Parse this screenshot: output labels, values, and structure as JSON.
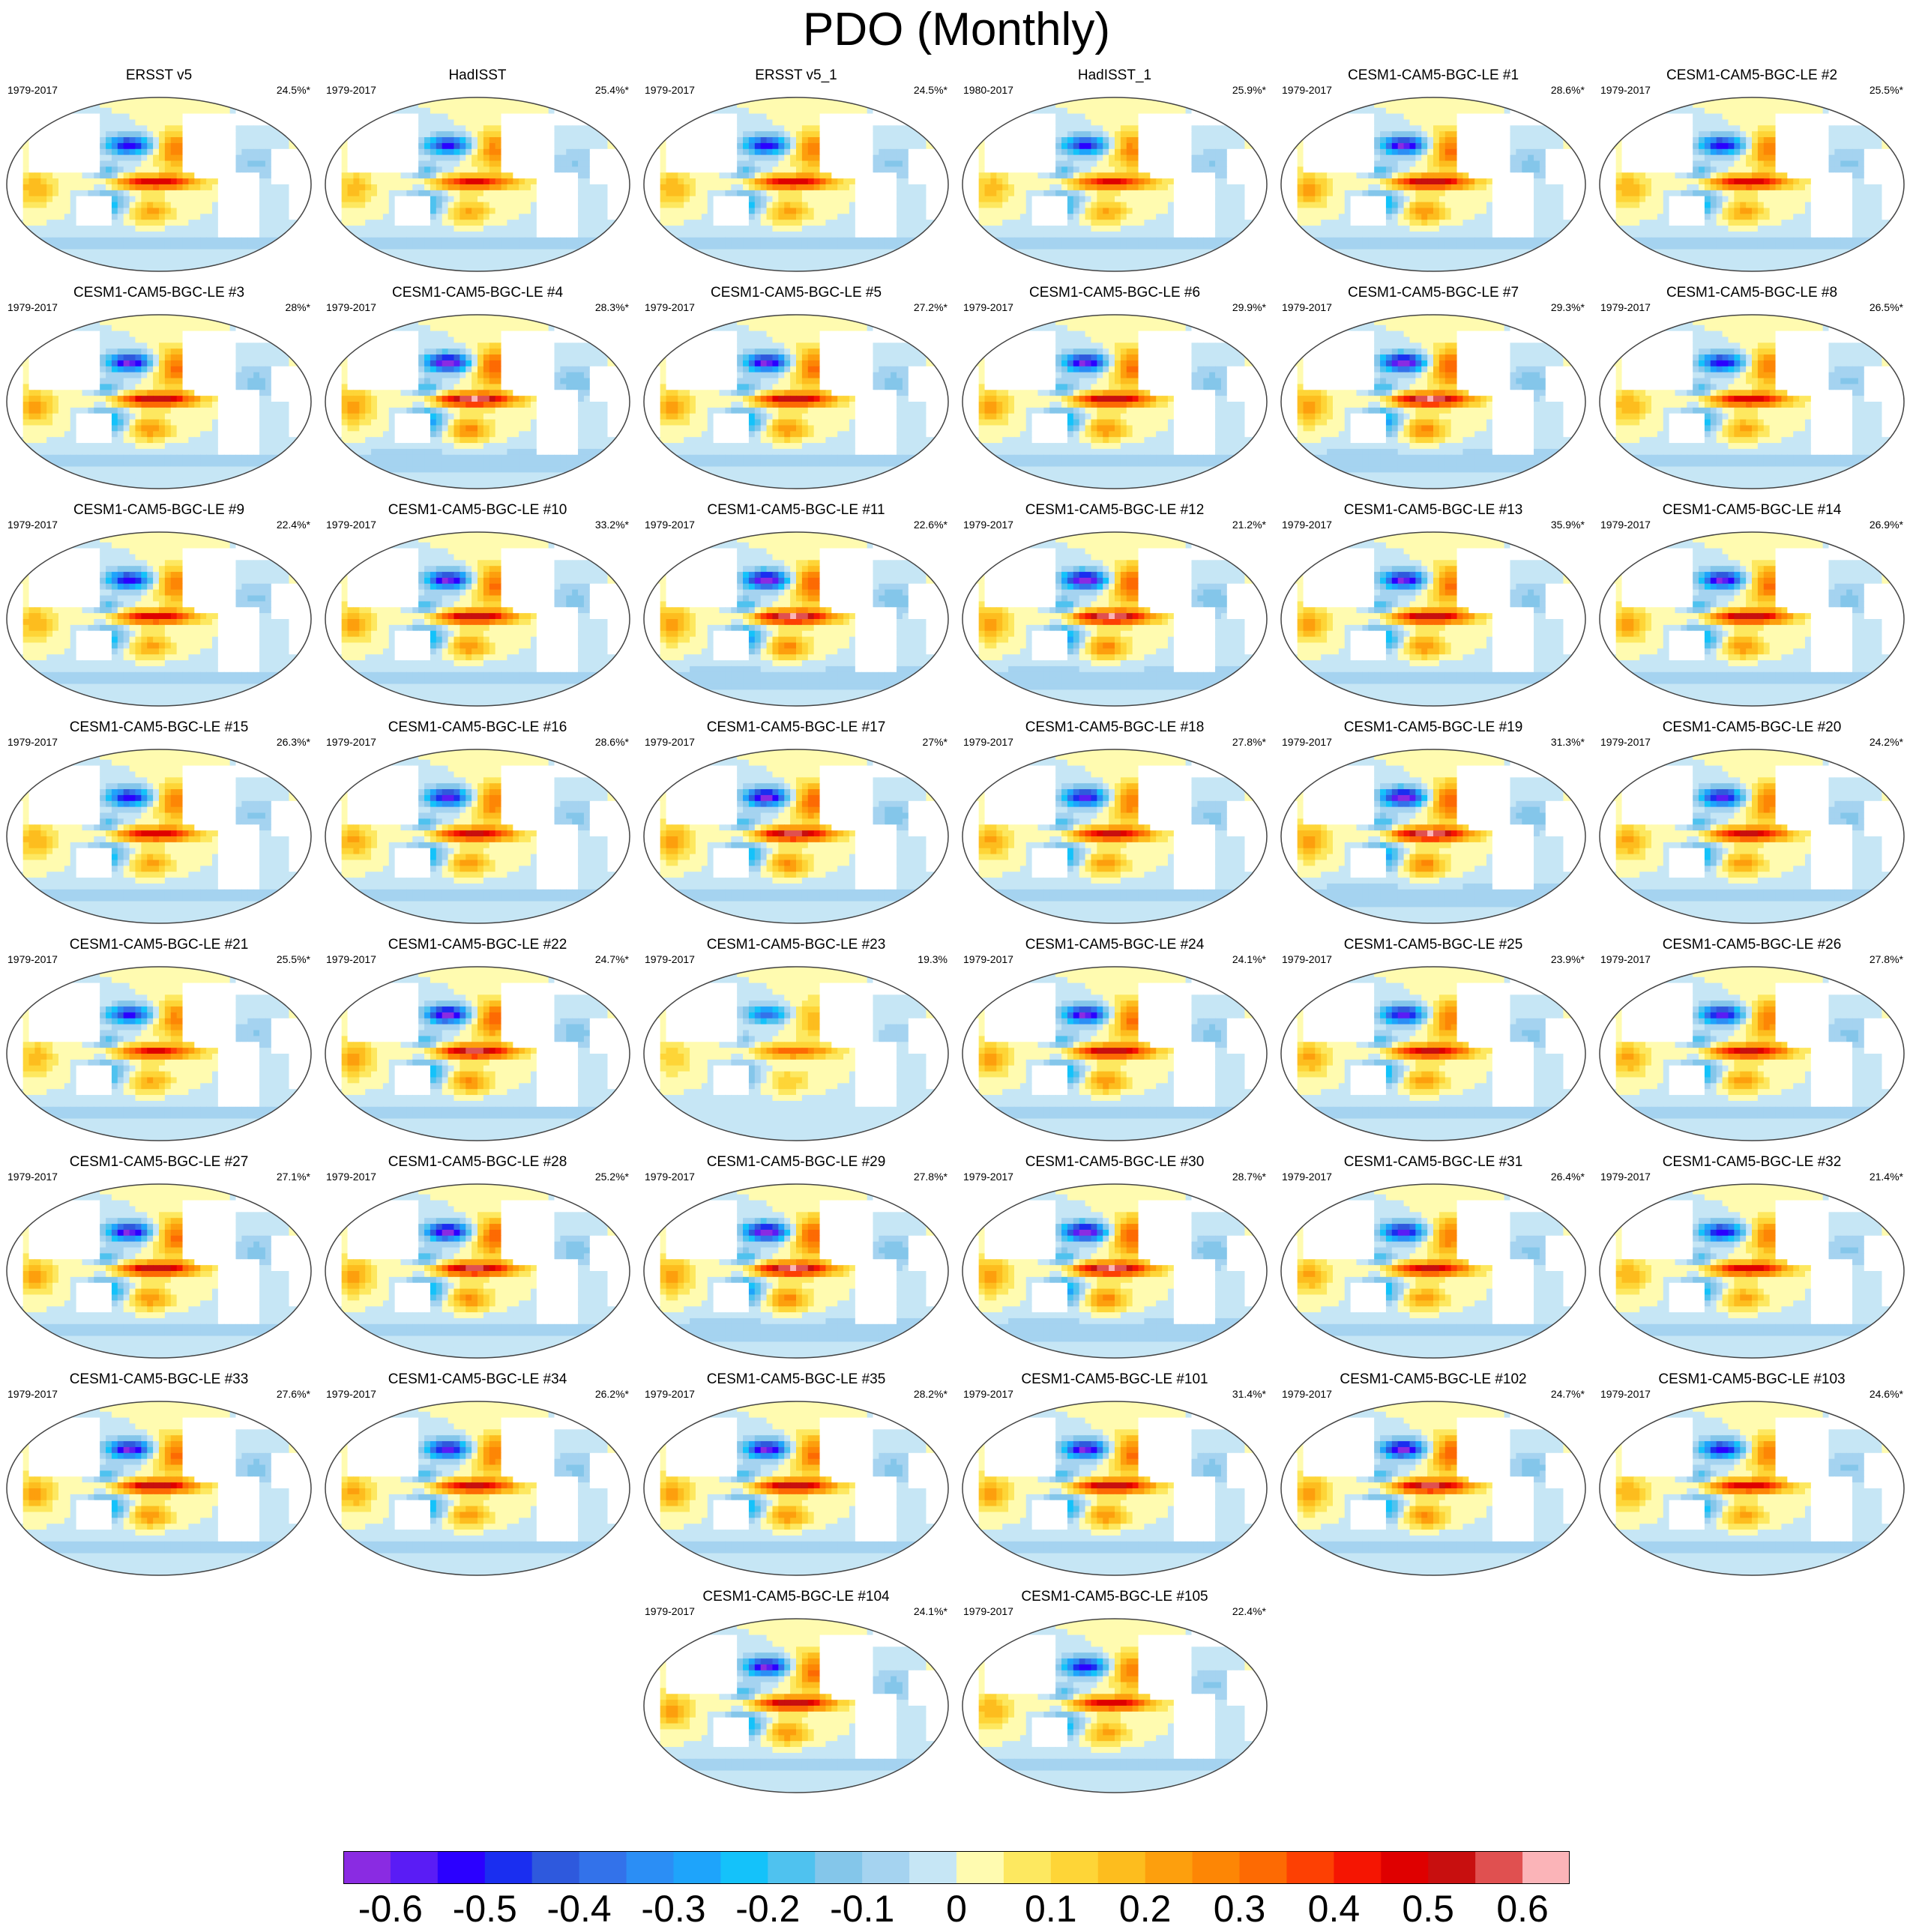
{
  "title": "PDO (Monthly)",
  "chart_data": {
    "type": "map-panels",
    "projection": "Robinson-like global, Pacific-centered",
    "variable": "PDO regression pattern (SST)",
    "panels": [
      {
        "title": "ERSST v5",
        "years": "1979-2017",
        "pct": "24.5%*",
        "amp": 0.9
      },
      {
        "title": "HadISST",
        "years": "1979-2017",
        "pct": "25.4%*",
        "amp": 0.85
      },
      {
        "title": "ERSST v5_1",
        "years": "1979-2017",
        "pct": "24.5%*",
        "amp": 0.9
      },
      {
        "title": "HadISST_1",
        "years": "1980-2017",
        "pct": "25.9%*",
        "amp": 0.85
      },
      {
        "title": "CESM1-CAM5-BGC-LE #1",
        "years": "1979-2017",
        "pct": "28.6%*",
        "amp": 1.0
      },
      {
        "title": "CESM1-CAM5-BGC-LE #2",
        "years": "1979-2017",
        "pct": "25.5%*",
        "amp": 0.9
      },
      {
        "title": "CESM1-CAM5-BGC-LE #3",
        "years": "1979-2017",
        "pct": "28%*",
        "amp": 1.0
      },
      {
        "title": "CESM1-CAM5-BGC-LE #4",
        "years": "1979-2017",
        "pct": "28.3%*",
        "amp": 1.1
      },
      {
        "title": "CESM1-CAM5-BGC-LE #5",
        "years": "1979-2017",
        "pct": "27.2%*",
        "amp": 1.0
      },
      {
        "title": "CESM1-CAM5-BGC-LE #6",
        "years": "1979-2017",
        "pct": "29.9%*",
        "amp": 1.0
      },
      {
        "title": "CESM1-CAM5-BGC-LE #7",
        "years": "1979-2017",
        "pct": "29.3%*",
        "amp": 1.1
      },
      {
        "title": "CESM1-CAM5-BGC-LE #8",
        "years": "1979-2017",
        "pct": "26.5%*",
        "amp": 0.9
      },
      {
        "title": "CESM1-CAM5-BGC-LE #9",
        "years": "1979-2017",
        "pct": "22.4%*",
        "amp": 0.9
      },
      {
        "title": "CESM1-CAM5-BGC-LE #10",
        "years": "1979-2017",
        "pct": "33.2%*",
        "amp": 1.0
      },
      {
        "title": "CESM1-CAM5-BGC-LE #11",
        "years": "1979-2017",
        "pct": "22.6%*",
        "amp": 1.1
      },
      {
        "title": "CESM1-CAM5-BGC-LE #12",
        "years": "1979-2017",
        "pct": "21.2%*",
        "amp": 1.1
      },
      {
        "title": "CESM1-CAM5-BGC-LE #13",
        "years": "1979-2017",
        "pct": "35.9%*",
        "amp": 1.0
      },
      {
        "title": "CESM1-CAM5-BGC-LE #14",
        "years": "1979-2017",
        "pct": "26.9%*",
        "amp": 1.0
      },
      {
        "title": "CESM1-CAM5-BGC-LE #15",
        "years": "1979-2017",
        "pct": "26.3%*",
        "amp": 0.9
      },
      {
        "title": "CESM1-CAM5-BGC-LE #16",
        "years": "1979-2017",
        "pct": "28.6%*",
        "amp": 0.95
      },
      {
        "title": "CESM1-CAM5-BGC-LE #17",
        "years": "1979-2017",
        "pct": "27%*",
        "amp": 1.05
      },
      {
        "title": "CESM1-CAM5-BGC-LE #18",
        "years": "1979-2017",
        "pct": "27.8%*",
        "amp": 0.95
      },
      {
        "title": "CESM1-CAM5-BGC-LE #19",
        "years": "1979-2017",
        "pct": "31.3%*",
        "amp": 1.1
      },
      {
        "title": "CESM1-CAM5-BGC-LE #20",
        "years": "1979-2017",
        "pct": "24.2%*",
        "amp": 0.95
      },
      {
        "title": "CESM1-CAM5-BGC-LE #21",
        "years": "1979-2017",
        "pct": "25.5%*",
        "amp": 0.85
      },
      {
        "title": "CESM1-CAM5-BGC-LE #22",
        "years": "1979-2017",
        "pct": "24.7%*",
        "amp": 1.05
      },
      {
        "title": "CESM1-CAM5-BGC-LE #23",
        "years": "1979-2017",
        "pct": "19.3%",
        "amp": 0.6
      },
      {
        "title": "CESM1-CAM5-BGC-LE #24",
        "years": "1979-2017",
        "pct": "24.1%*",
        "amp": 1.0
      },
      {
        "title": "CESM1-CAM5-BGC-LE #25",
        "years": "1979-2017",
        "pct": "23.9%*",
        "amp": 0.95
      },
      {
        "title": "CESM1-CAM5-BGC-LE #26",
        "years": "1979-2017",
        "pct": "27.8%*",
        "amp": 0.95
      },
      {
        "title": "CESM1-CAM5-BGC-LE #27",
        "years": "1979-2017",
        "pct": "27.1%*",
        "amp": 1.0
      },
      {
        "title": "CESM1-CAM5-BGC-LE #28",
        "years": "1979-2017",
        "pct": "25.2%*",
        "amp": 1.05
      },
      {
        "title": "CESM1-CAM5-BGC-LE #29",
        "years": "1979-2017",
        "pct": "27.8%*",
        "amp": 1.1
      },
      {
        "title": "CESM1-CAM5-BGC-LE #30",
        "years": "1979-2017",
        "pct": "28.7%*",
        "amp": 1.1
      },
      {
        "title": "CESM1-CAM5-BGC-LE #31",
        "years": "1979-2017",
        "pct": "26.4%*",
        "amp": 0.95
      },
      {
        "title": "CESM1-CAM5-BGC-LE #32",
        "years": "1979-2017",
        "pct": "21.4%*",
        "amp": 0.9
      },
      {
        "title": "CESM1-CAM5-BGC-LE #33",
        "years": "1979-2017",
        "pct": "27.6%*",
        "amp": 1.0
      },
      {
        "title": "CESM1-CAM5-BGC-LE #34",
        "years": "1979-2017",
        "pct": "26.2%*",
        "amp": 0.95
      },
      {
        "title": "CESM1-CAM5-BGC-LE #35",
        "years": "1979-2017",
        "pct": "28.2%*",
        "amp": 1.0
      },
      {
        "title": "CESM1-CAM5-BGC-LE #101",
        "years": "1979-2017",
        "pct": "31.4%*",
        "amp": 1.0
      },
      {
        "title": "CESM1-CAM5-BGC-LE #102",
        "years": "1979-2017",
        "pct": "24.7%*",
        "amp": 1.05
      },
      {
        "title": "CESM1-CAM5-BGC-LE #103",
        "years": "1979-2017",
        "pct": "24.6%*",
        "amp": 0.9
      },
      {
        "title": "CESM1-CAM5-BGC-LE #104",
        "years": "1979-2017",
        "pct": "24.1%*",
        "amp": 1.0
      },
      {
        "title": "CESM1-CAM5-BGC-LE #105",
        "years": "1979-2017",
        "pct": "22.4%*",
        "amp": 0.9
      }
    ],
    "colorbar": {
      "levels": [
        -0.65,
        -0.6,
        -0.55,
        -0.5,
        -0.45,
        -0.4,
        -0.35,
        -0.3,
        -0.25,
        -0.2,
        -0.15,
        -0.1,
        -0.05,
        0,
        0.05,
        0.1,
        0.15,
        0.2,
        0.25,
        0.3,
        0.35,
        0.4,
        0.45,
        0.5,
        0.55,
        0.6,
        0.65
      ],
      "colors": [
        "#8a2be2",
        "#5a1cf5",
        "#2b00ff",
        "#1a2ef0",
        "#2e59dd",
        "#3372ea",
        "#2b8ef5",
        "#1ea4fb",
        "#14c2fa",
        "#4fc2ef",
        "#84c6ea",
        "#a5d3f0",
        "#c6e6f5",
        "#fffbb0",
        "#fde860",
        "#fed537",
        "#fdbd1e",
        "#fd9f0d",
        "#fd8605",
        "#fd6a03",
        "#fd4003",
        "#f51502",
        "#df0000",
        "#c80f0f",
        "#e05050",
        "#fbb4b8"
      ],
      "tick_labels": [
        "-0.6",
        "-0.5",
        "-0.4",
        "-0.3",
        "-0.2",
        "-0.1",
        "0",
        "0.1",
        "0.2",
        "0.3",
        "0.4",
        "0.5",
        "0.6"
      ],
      "tick_values": [
        -0.6,
        -0.5,
        -0.4,
        -0.3,
        -0.2,
        -0.1,
        0,
        0.1,
        0.2,
        0.3,
        0.4,
        0.5,
        0.6
      ]
    }
  }
}
